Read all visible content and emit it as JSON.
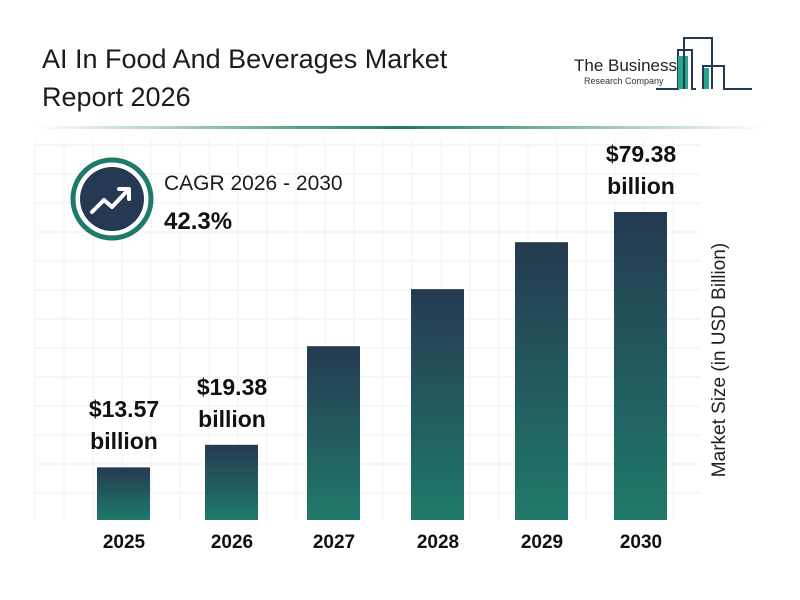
{
  "title": "AI In Food And Beverages Market Report 2026",
  "logo": {
    "line1": "The Business",
    "line2": "Research Company"
  },
  "cagr": {
    "label": "CAGR 2026 - 2030",
    "value": "42.3%",
    "icon": "trending-up-icon"
  },
  "colors": {
    "bar_top": "#253a52",
    "bar_bottom": "#1f7a6a",
    "accent": "#1f7a6a",
    "icon_bg": "#253a52"
  },
  "chart_data": {
    "type": "bar",
    "categories": [
      "2025",
      "2026",
      "2027",
      "2028",
      "2029",
      "2030"
    ],
    "values": [
      13.57,
      19.38,
      44.8,
      59.5,
      71.6,
      79.38
    ],
    "data_labels": [
      "$13.57 billion",
      "$19.38 billion",
      "",
      "",
      "",
      "$79.38 billion"
    ],
    "data_label_lines": [
      [
        "$13.57",
        "billion"
      ],
      [
        "$19.38",
        "billion"
      ],
      [],
      [],
      [],
      [
        "$79.38",
        "billion"
      ]
    ],
    "ylabel": "Market Size (in USD Billion)",
    "xlabel": "",
    "ylim": [
      0,
      80
    ],
    "grid": true
  }
}
